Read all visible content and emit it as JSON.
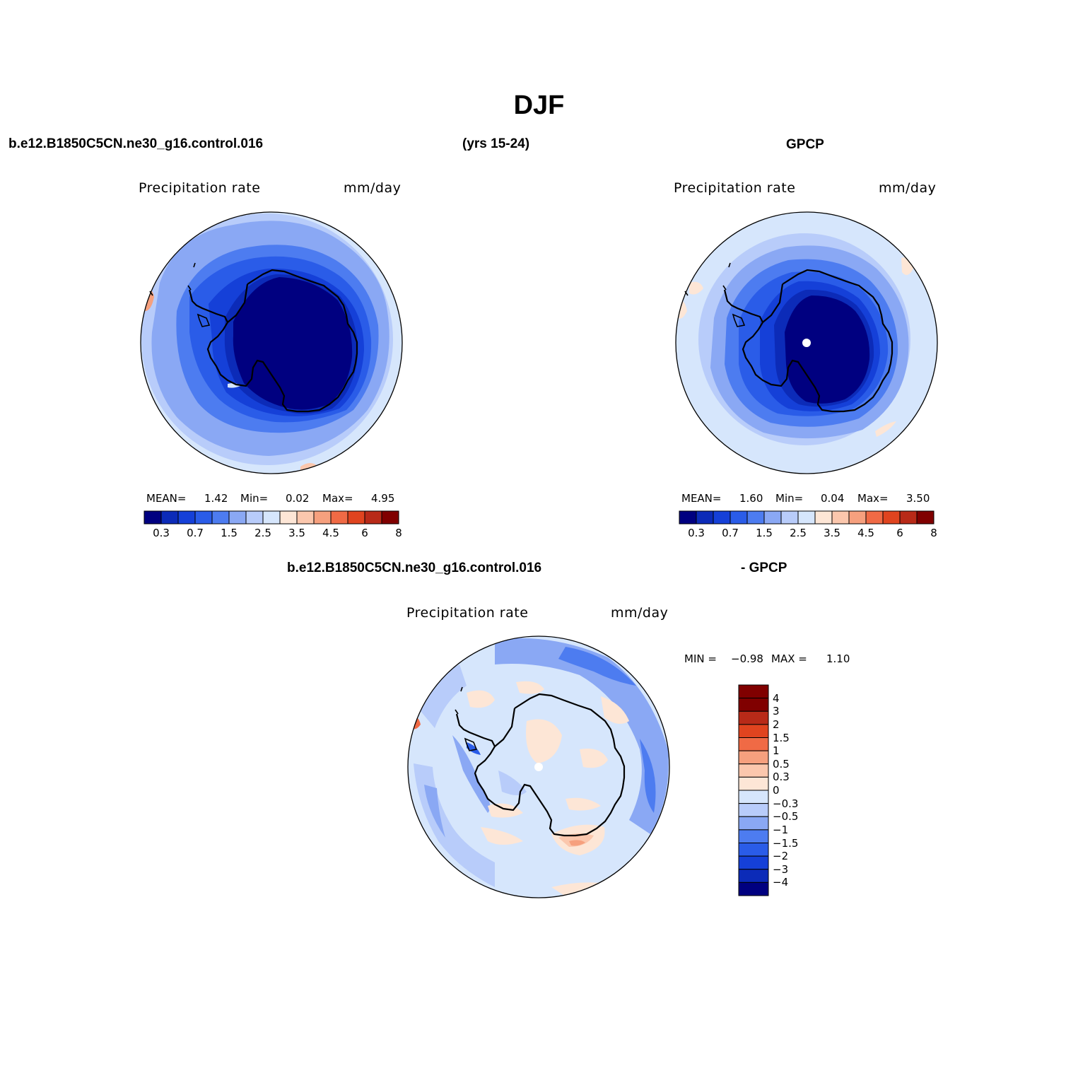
{
  "title": "DJF",
  "header": {
    "case_name": "b.e12.B1850C5CN.ne30_g16.control.016",
    "years": "(yrs 15-24)",
    "obs_name": "GPCP",
    "diff_case": "b.e12.B1850C5CN.ne30_g16.control.016",
    "diff_obs": "- GPCP"
  },
  "palette": {
    "abs_colors": [
      "#000080",
      "#0c2bb8",
      "#1540d8",
      "#2a5ce8",
      "#4d7cf0",
      "#8aa8f4",
      "#b8ccfa",
      "#d6e6fc",
      "#fde6d6",
      "#fbc7ad",
      "#f6a07e",
      "#f06a45",
      "#e0441f",
      "#b82a18",
      "#800000"
    ],
    "diff_colors": [
      "#000080",
      "#0c2bb8",
      "#1540d8",
      "#2a5ce8",
      "#4d7cf0",
      "#8aa8f4",
      "#b8ccfa",
      "#d6e6fc",
      "#fde6d6",
      "#fbc7ad",
      "#f6a07e",
      "#f06a45",
      "#e0441f",
      "#b82a18",
      "#800000"
    ],
    "land_outline": "#000000"
  },
  "panels": [
    {
      "id": "model",
      "var_label": "Precipitation rate",
      "units": "mm/day",
      "stats": {
        "mean_label": "MEAN=",
        "mean": "1.42",
        "min_label": "Min=",
        "min": "0.02",
        "max_label": "Max=",
        "max": "4.95"
      },
      "ticks": [
        "0.3",
        "0.7",
        "1.5",
        "2.5",
        "3.5",
        "4.5",
        "6",
        "8"
      ]
    },
    {
      "id": "obs",
      "var_label": "Precipitation rate",
      "units": "mm/day",
      "stats": {
        "mean_label": "MEAN=",
        "mean": "1.60",
        "min_label": "Min=",
        "min": "0.04",
        "max_label": "Max=",
        "max": "3.50"
      },
      "ticks": [
        "0.3",
        "0.7",
        "1.5",
        "2.5",
        "3.5",
        "4.5",
        "6",
        "8"
      ]
    },
    {
      "id": "diff",
      "var_label": "Precipitation rate",
      "units": "mm/day",
      "stats": {
        "min_label": "MIN =",
        "min": "−0.98",
        "max_label": "MAX =",
        "max": "1.10"
      },
      "ticks": [
        "4",
        "3",
        "2",
        "1.5",
        "1",
        "0.5",
        "0.3",
        "0",
        "−0.3",
        "−0.5",
        "−1",
        "−1.5",
        "−2",
        "−3",
        "−4"
      ]
    }
  ]
}
